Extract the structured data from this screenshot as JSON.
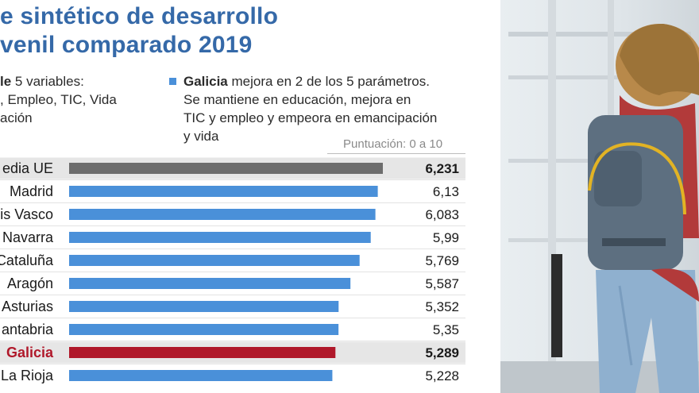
{
  "header": {
    "title_line1": "e sintético de desarrollo",
    "title_line2": "venil comparado 2019"
  },
  "notes": {
    "left_line1_bold": "le",
    "left_line1_rest": " 5 variables:",
    "left_line2": ", Empleo, TIC, Vida",
    "left_line3": "ación",
    "right_line1_bold": "Galicia",
    "right_line1_rest": " mejora en 2 de los 5 parámetros.",
    "right_line2": "Se mantiene en educación, mejora en",
    "right_line3": "TIC y empleo y empeora en emancipación",
    "right_line4": "y vida"
  },
  "scale_note": "Puntuación: 0 a 10",
  "colors": {
    "title": "#3569a8",
    "bar_default": "#4a90d9",
    "bar_eu": "#6d6d6d",
    "bar_galicia": "#b0182a",
    "row_highlight": "#e6e6e6"
  },
  "chart_data": {
    "type": "bar",
    "orientation": "horizontal",
    "categories": [
      "Media UE",
      "Madrid",
      "País Vasco",
      "Navarra",
      "Cataluña",
      "Aragón",
      "Asturias",
      "Cantabria",
      "Galicia",
      "La Rioja"
    ],
    "visible_category_labels": [
      "edia UE",
      "Madrid",
      "is Vasco",
      "Navarra",
      "Cataluña",
      "Aragón",
      "Asturias",
      "antabria",
      "Galicia",
      "La Rioja"
    ],
    "values": [
      6.231,
      6.13,
      6.083,
      5.99,
      5.769,
      5.587,
      5.352,
      5.35,
      5.289,
      5.228
    ],
    "value_labels": [
      "6,231",
      "6,13",
      "6,083",
      "5,99",
      "5,769",
      "5,587",
      "5,352",
      "5,35",
      "5,289",
      "5,228"
    ],
    "highlighted": [
      "Media UE",
      "Galicia"
    ],
    "xlim": [
      0,
      10
    ],
    "grid": false,
    "legend": "none"
  },
  "photo": {
    "alt": "Joven con mochila"
  }
}
